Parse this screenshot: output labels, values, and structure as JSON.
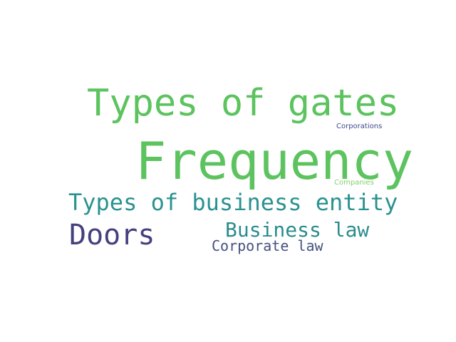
{
  "words": [
    {
      "text": "Types of gates",
      "color": "#5cc35f"
    },
    {
      "text": "Frequency",
      "color": "#5cc35f"
    },
    {
      "text": "Corporations",
      "color": "#3e4a8a"
    },
    {
      "text": "Companies",
      "color": "#7ed06a"
    },
    {
      "text": "Types of business entity",
      "color": "#2a9290"
    },
    {
      "text": "Doors",
      "color": "#45407f"
    },
    {
      "text": "Business law",
      "color": "#2b8c8d"
    },
    {
      "text": "Corporate law",
      "color": "#45527f"
    }
  ]
}
